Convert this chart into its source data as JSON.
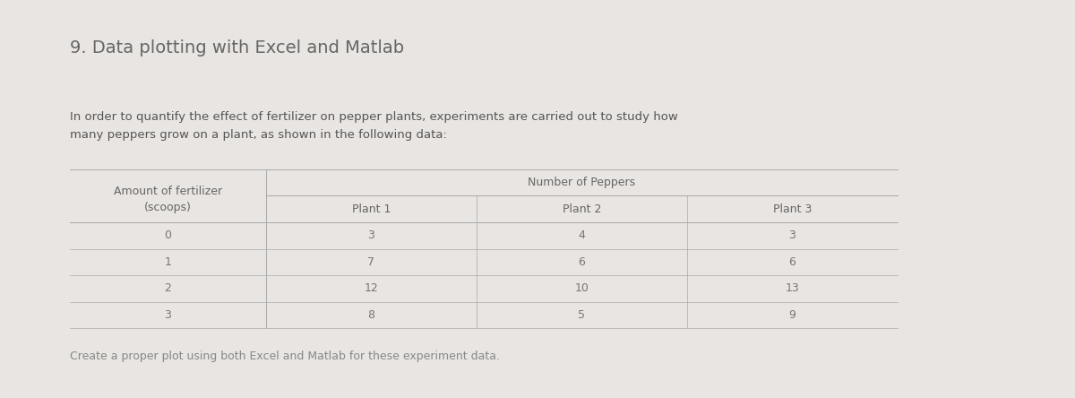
{
  "title": "9. Data plotting with Excel and Matlab",
  "body_text": "In order to quantify the effect of fertilizer on pepper plants, experiments are carried out to study how\nmany peppers grow on a plant, as shown in the following data:",
  "footer_text": "Create a proper plot using both Excel and Matlab for these experiment data.",
  "table_data": [
    [
      0,
      3,
      4,
      3
    ],
    [
      1,
      7,
      6,
      6
    ],
    [
      2,
      12,
      10,
      13
    ],
    [
      3,
      8,
      5,
      9
    ]
  ],
  "background_color": "#e8e5e2",
  "card_color": "#eeebe8",
  "title_color": "#666666",
  "body_color": "#555555",
  "table_header_color": "#666666",
  "table_data_color": "#777777",
  "footer_color": "#888888",
  "title_fontsize": 14,
  "body_fontsize": 9.5,
  "table_fontsize": 9,
  "footer_fontsize": 9
}
